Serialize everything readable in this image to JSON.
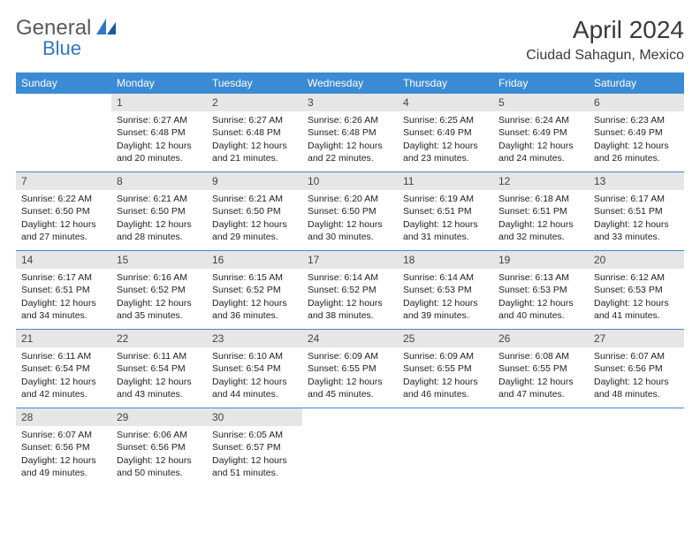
{
  "logo": {
    "text1": "General",
    "text2": "Blue"
  },
  "title": "April 2024",
  "location": "Ciudad Sahagun, Mexico",
  "colors": {
    "header_bg": "#3b8bd4",
    "daynum_bg": "#e6e6e6",
    "rule": "#3b8bd4",
    "logo_gray": "#5a5a5a",
    "logo_blue": "#2f78c4"
  },
  "weekdays": [
    "Sunday",
    "Monday",
    "Tuesday",
    "Wednesday",
    "Thursday",
    "Friday",
    "Saturday"
  ],
  "weeks": [
    [
      null,
      {
        "n": "1",
        "sr": "6:27 AM",
        "ss": "6:48 PM",
        "dl": "12 hours and 20 minutes."
      },
      {
        "n": "2",
        "sr": "6:27 AM",
        "ss": "6:48 PM",
        "dl": "12 hours and 21 minutes."
      },
      {
        "n": "3",
        "sr": "6:26 AM",
        "ss": "6:48 PM",
        "dl": "12 hours and 22 minutes."
      },
      {
        "n": "4",
        "sr": "6:25 AM",
        "ss": "6:49 PM",
        "dl": "12 hours and 23 minutes."
      },
      {
        "n": "5",
        "sr": "6:24 AM",
        "ss": "6:49 PM",
        "dl": "12 hours and 24 minutes."
      },
      {
        "n": "6",
        "sr": "6:23 AM",
        "ss": "6:49 PM",
        "dl": "12 hours and 26 minutes."
      }
    ],
    [
      {
        "n": "7",
        "sr": "6:22 AM",
        "ss": "6:50 PM",
        "dl": "12 hours and 27 minutes."
      },
      {
        "n": "8",
        "sr": "6:21 AM",
        "ss": "6:50 PM",
        "dl": "12 hours and 28 minutes."
      },
      {
        "n": "9",
        "sr": "6:21 AM",
        "ss": "6:50 PM",
        "dl": "12 hours and 29 minutes."
      },
      {
        "n": "10",
        "sr": "6:20 AM",
        "ss": "6:50 PM",
        "dl": "12 hours and 30 minutes."
      },
      {
        "n": "11",
        "sr": "6:19 AM",
        "ss": "6:51 PM",
        "dl": "12 hours and 31 minutes."
      },
      {
        "n": "12",
        "sr": "6:18 AM",
        "ss": "6:51 PM",
        "dl": "12 hours and 32 minutes."
      },
      {
        "n": "13",
        "sr": "6:17 AM",
        "ss": "6:51 PM",
        "dl": "12 hours and 33 minutes."
      }
    ],
    [
      {
        "n": "14",
        "sr": "6:17 AM",
        "ss": "6:51 PM",
        "dl": "12 hours and 34 minutes."
      },
      {
        "n": "15",
        "sr": "6:16 AM",
        "ss": "6:52 PM",
        "dl": "12 hours and 35 minutes."
      },
      {
        "n": "16",
        "sr": "6:15 AM",
        "ss": "6:52 PM",
        "dl": "12 hours and 36 minutes."
      },
      {
        "n": "17",
        "sr": "6:14 AM",
        "ss": "6:52 PM",
        "dl": "12 hours and 38 minutes."
      },
      {
        "n": "18",
        "sr": "6:14 AM",
        "ss": "6:53 PM",
        "dl": "12 hours and 39 minutes."
      },
      {
        "n": "19",
        "sr": "6:13 AM",
        "ss": "6:53 PM",
        "dl": "12 hours and 40 minutes."
      },
      {
        "n": "20",
        "sr": "6:12 AM",
        "ss": "6:53 PM",
        "dl": "12 hours and 41 minutes."
      }
    ],
    [
      {
        "n": "21",
        "sr": "6:11 AM",
        "ss": "6:54 PM",
        "dl": "12 hours and 42 minutes."
      },
      {
        "n": "22",
        "sr": "6:11 AM",
        "ss": "6:54 PM",
        "dl": "12 hours and 43 minutes."
      },
      {
        "n": "23",
        "sr": "6:10 AM",
        "ss": "6:54 PM",
        "dl": "12 hours and 44 minutes."
      },
      {
        "n": "24",
        "sr": "6:09 AM",
        "ss": "6:55 PM",
        "dl": "12 hours and 45 minutes."
      },
      {
        "n": "25",
        "sr": "6:09 AM",
        "ss": "6:55 PM",
        "dl": "12 hours and 46 minutes."
      },
      {
        "n": "26",
        "sr": "6:08 AM",
        "ss": "6:55 PM",
        "dl": "12 hours and 47 minutes."
      },
      {
        "n": "27",
        "sr": "6:07 AM",
        "ss": "6:56 PM",
        "dl": "12 hours and 48 minutes."
      }
    ],
    [
      {
        "n": "28",
        "sr": "6:07 AM",
        "ss": "6:56 PM",
        "dl": "12 hours and 49 minutes."
      },
      {
        "n": "29",
        "sr": "6:06 AM",
        "ss": "6:56 PM",
        "dl": "12 hours and 50 minutes."
      },
      {
        "n": "30",
        "sr": "6:05 AM",
        "ss": "6:57 PM",
        "dl": "12 hours and 51 minutes."
      },
      null,
      null,
      null,
      null
    ]
  ],
  "labels": {
    "sunrise": "Sunrise:",
    "sunset": "Sunset:",
    "daylight": "Daylight:"
  }
}
